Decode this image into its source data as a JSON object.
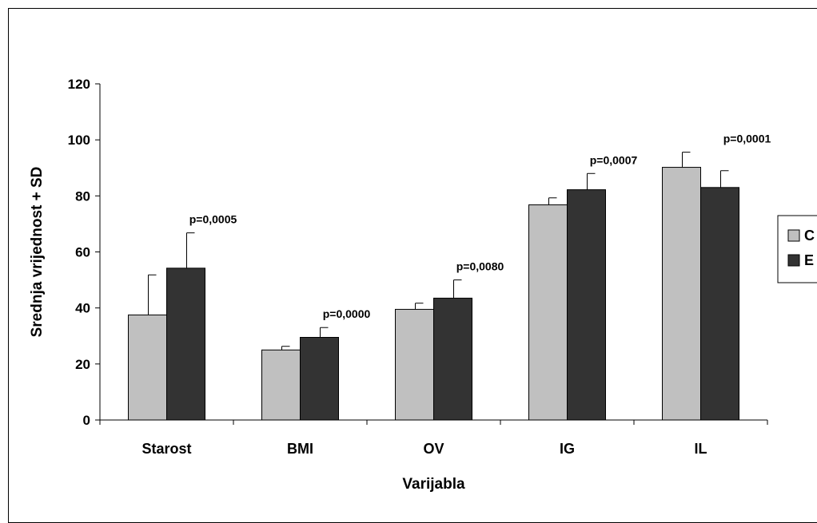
{
  "chart_data": {
    "type": "bar",
    "categories": [
      "Starost",
      "BMI",
      "OV",
      "IG",
      "IL"
    ],
    "series": [
      {
        "name": "C",
        "values": [
          37.5,
          25,
          39.5,
          76.8,
          90.2
        ],
        "sd": [
          14.3,
          1.3,
          2.2,
          2.5,
          5.4
        ],
        "color": "#c0c0c0"
      },
      {
        "name": "E",
        "values": [
          54.2,
          29.5,
          43.5,
          82.2,
          83.0
        ],
        "sd": [
          12.6,
          3.5,
          6.5,
          5.8,
          6.0
        ],
        "color": "#333333"
      }
    ],
    "annotations": [
      "p=0,0005",
      "p=0,0000",
      "p=0,0080",
      "p=0,0007",
      "p=0,0001"
    ],
    "xlabel": "Varijabla",
    "ylabel": "Srednja vrijednost + SD",
    "ylim": [
      0,
      120
    ],
    "yticks": [
      "0",
      "20",
      "40",
      "60",
      "80",
      "100",
      "120"
    ],
    "grid": false,
    "legend_position": "right"
  }
}
